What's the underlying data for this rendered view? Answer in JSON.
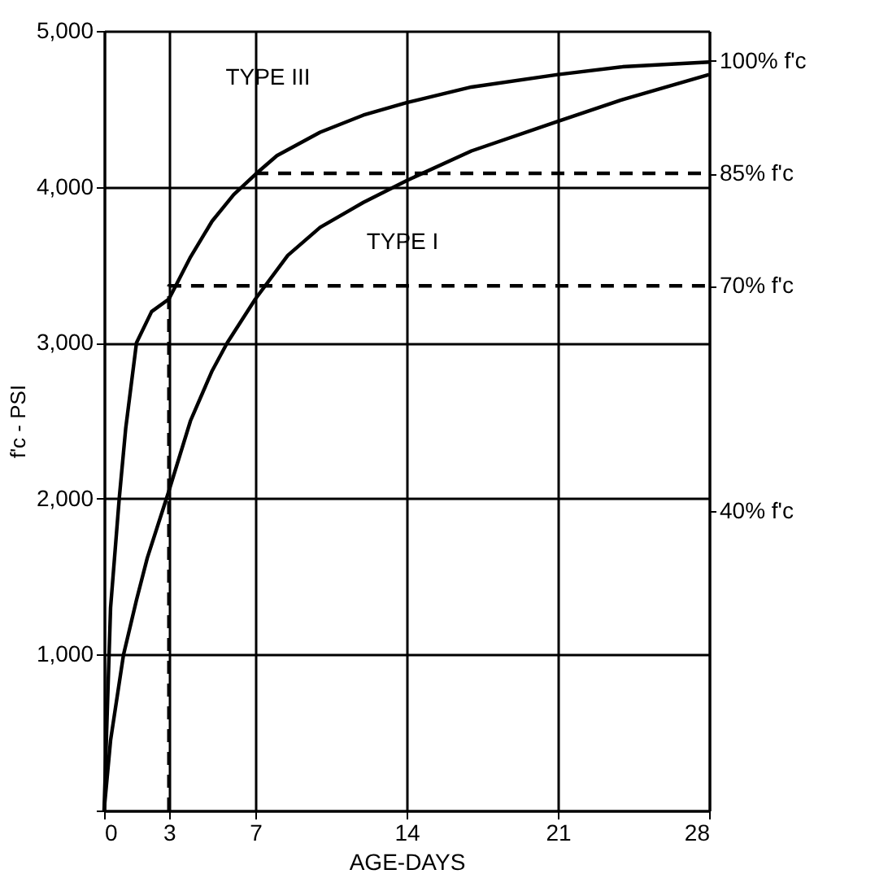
{
  "chart_data": {
    "type": "line",
    "xlabel": "AGE-DAYS",
    "ylabel": "f'c - PSI",
    "xlim": [
      0,
      28
    ],
    "xticks": [
      0,
      3,
      7,
      14,
      21,
      28
    ],
    "ylim": [
      0,
      5000
    ],
    "yticks": [
      {
        "value": 0,
        "label": null
      },
      {
        "value": 1000,
        "label": "1,000"
      },
      {
        "value": 2000,
        "label": "2,000"
      },
      {
        "value": 3000,
        "label": "3,000"
      },
      {
        "value": 4000,
        "label": "4,000"
      },
      {
        "value": 5000,
        "label": "5,000"
      }
    ],
    "y2lim": [
      0,
      104
    ],
    "y2ticks": [
      {
        "value": 40,
        "label": "40% f'c"
      },
      {
        "value": 70,
        "label": "70% f'c"
      },
      {
        "value": 85,
        "label": "85% f'c"
      },
      {
        "value": 100,
        "label": "100% f'c"
      }
    ],
    "grid": true,
    "marker": "none",
    "series": [
      {
        "color": "#000000",
        "line_style": "solid",
        "x": [
          0,
          0.3,
          0.7,
          1.0,
          1.5,
          2.2,
          3,
          4,
          5,
          6,
          7,
          8,
          10,
          12,
          14,
          17,
          21,
          24,
          28
        ],
        "values": [
          0,
          1300,
          2000,
          2450,
          3000,
          3200,
          3280,
          3550,
          3780,
          3950,
          4080,
          4200,
          4350,
          4460,
          4540,
          4640,
          4720,
          4770,
          4800
        ]
      },
      {
        "color": "#000000",
        "line_style": "solid",
        "x": [
          0,
          0.3,
          0.9,
          1.5,
          2,
          3,
          4,
          5,
          5.7,
          7,
          8.5,
          10,
          12,
          14,
          17,
          21,
          24,
          28
        ],
        "values": [
          0,
          450,
          1000,
          1350,
          1620,
          2050,
          2500,
          2820,
          3000,
          3280,
          3560,
          3740,
          3900,
          4040,
          4230,
          4420,
          4560,
          4720
        ]
      },
      {
        "color": "#000000",
        "line_style": "dashed",
        "axis": "y2",
        "x": [
          3,
          3,
          28
        ],
        "values": [
          0,
          70,
          70
        ]
      },
      {
        "color": "#000000",
        "line_style": "dashed",
        "axis": "y2",
        "x": [
          7,
          28
        ],
        "values": [
          85,
          85
        ]
      }
    ],
    "annotations": [
      {
        "text": "TYPE III",
        "x": 12.1,
        "y": 4490
      },
      {
        "text": "TYPE I",
        "x": 10.8,
        "y": 3770
      }
    ]
  }
}
